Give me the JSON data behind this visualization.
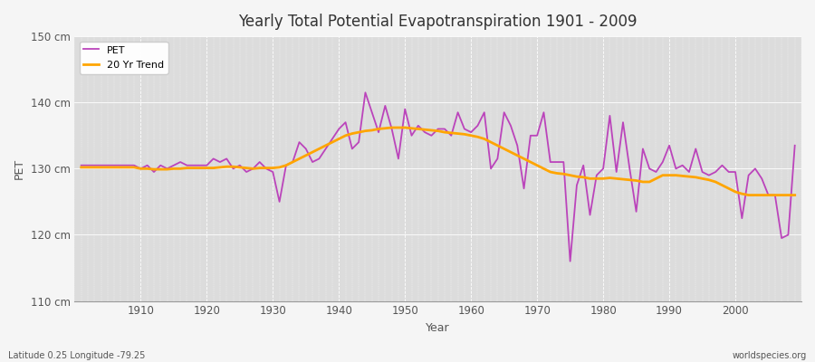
{
  "title": "Yearly Total Potential Evapotranspiration 1901 - 2009",
  "ylabel": "PET",
  "xlabel": "Year",
  "bottom_left_label": "Latitude 0.25 Longitude -79.25",
  "bottom_right_label": "worldspecies.org",
  "ylim": [
    110,
    150
  ],
  "yticks": [
    110,
    120,
    130,
    140,
    150
  ],
  "ytick_labels": [
    "110 cm",
    "120 cm",
    "130 cm",
    "140 cm",
    "150 cm"
  ],
  "xticks": [
    1910,
    1920,
    1930,
    1940,
    1950,
    1960,
    1970,
    1980,
    1990,
    2000
  ],
  "pet_color": "#BB44BB",
  "trend_color": "#FFA500",
  "plot_bg_color": "#DCDCDC",
  "fig_bg_color": "#F5F5F5",
  "grid_color": "#FFFFFF",
  "legend_labels": [
    "PET",
    "20 Yr Trend"
  ],
  "years": [
    1901,
    1902,
    1903,
    1904,
    1905,
    1906,
    1907,
    1908,
    1909,
    1910,
    1911,
    1912,
    1913,
    1914,
    1915,
    1916,
    1917,
    1918,
    1919,
    1920,
    1921,
    1922,
    1923,
    1924,
    1925,
    1926,
    1927,
    1928,
    1929,
    1930,
    1931,
    1932,
    1933,
    1934,
    1935,
    1936,
    1937,
    1938,
    1939,
    1940,
    1941,
    1942,
    1943,
    1944,
    1945,
    1946,
    1947,
    1948,
    1949,
    1950,
    1951,
    1952,
    1953,
    1954,
    1955,
    1956,
    1957,
    1958,
    1959,
    1960,
    1961,
    1962,
    1963,
    1964,
    1965,
    1966,
    1967,
    1968,
    1969,
    1970,
    1971,
    1972,
    1973,
    1974,
    1975,
    1976,
    1977,
    1978,
    1979,
    1980,
    1981,
    1982,
    1983,
    1984,
    1985,
    1986,
    1987,
    1988,
    1989,
    1990,
    1991,
    1992,
    1993,
    1994,
    1995,
    1996,
    1997,
    1998,
    1999,
    2000,
    2001,
    2002,
    2003,
    2004,
    2005,
    2006,
    2007,
    2008,
    2009
  ],
  "pet_values": [
    130.5,
    130.5,
    130.5,
    130.5,
    130.5,
    130.5,
    130.5,
    130.5,
    130.5,
    130.0,
    130.5,
    129.5,
    130.5,
    130.0,
    130.5,
    131.0,
    130.5,
    130.5,
    130.5,
    130.5,
    131.5,
    131.0,
    131.5,
    130.0,
    130.5,
    129.5,
    130.0,
    131.0,
    130.0,
    129.5,
    125.0,
    130.5,
    131.0,
    134.0,
    133.0,
    131.0,
    131.5,
    133.0,
    134.5,
    136.0,
    137.0,
    133.0,
    134.0,
    141.5,
    138.5,
    135.5,
    139.5,
    136.0,
    131.5,
    139.0,
    135.0,
    136.5,
    135.5,
    135.0,
    136.0,
    136.0,
    135.0,
    138.5,
    136.0,
    135.5,
    136.5,
    138.5,
    130.0,
    131.5,
    138.5,
    136.5,
    133.5,
    127.0,
    135.0,
    135.0,
    138.5,
    131.0,
    131.0,
    131.0,
    116.0,
    127.5,
    130.5,
    123.0,
    129.0,
    130.0,
    138.0,
    129.5,
    137.0,
    130.0,
    123.5,
    133.0,
    130.0,
    129.5,
    131.0,
    133.5,
    130.0,
    130.5,
    129.5,
    133.0,
    129.5,
    129.0,
    129.5,
    130.5,
    129.5,
    129.5,
    122.5,
    129.0,
    130.0,
    128.5,
    126.0,
    126.0,
    119.5,
    120.0,
    133.5
  ],
  "trend_values": [
    130.2,
    130.2,
    130.2,
    130.2,
    130.2,
    130.2,
    130.2,
    130.2,
    130.2,
    130.0,
    130.0,
    129.9,
    129.9,
    129.9,
    130.0,
    130.0,
    130.1,
    130.1,
    130.1,
    130.1,
    130.1,
    130.2,
    130.3,
    130.3,
    130.2,
    130.1,
    130.0,
    130.1,
    130.1,
    130.1,
    130.2,
    130.5,
    131.0,
    131.5,
    132.0,
    132.5,
    133.0,
    133.5,
    134.0,
    134.5,
    135.0,
    135.3,
    135.5,
    135.7,
    135.8,
    136.0,
    136.1,
    136.2,
    136.2,
    136.2,
    136.1,
    136.0,
    135.9,
    135.8,
    135.7,
    135.5,
    135.4,
    135.3,
    135.2,
    135.0,
    134.8,
    134.5,
    134.0,
    133.5,
    133.0,
    132.5,
    132.0,
    131.5,
    131.0,
    130.5,
    130.0,
    129.5,
    129.3,
    129.2,
    129.0,
    128.8,
    128.7,
    128.5,
    128.5,
    128.5,
    128.6,
    128.5,
    128.4,
    128.3,
    128.2,
    128.0,
    128.0,
    128.5,
    129.0,
    129.0,
    129.0,
    128.9,
    128.8,
    128.7,
    128.5,
    128.3,
    128.0,
    127.5,
    127.0,
    126.5,
    126.2,
    126.0,
    126.0,
    126.0,
    126.0,
    126.0,
    126.0,
    126.0,
    126.0
  ]
}
